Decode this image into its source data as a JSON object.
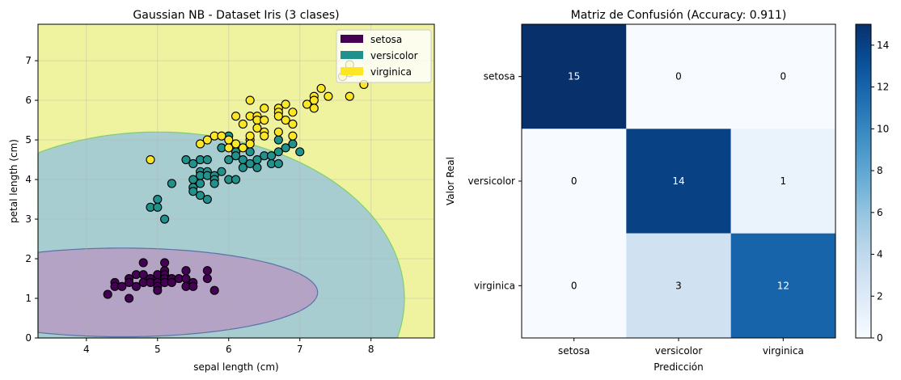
{
  "chart_data": [
    {
      "type": "scatter",
      "title": "Gaussian NB - Dataset Iris (3 clases)",
      "xlabel": "sepal length (cm)",
      "ylabel": "petal length (cm)",
      "xlim": [
        3.32,
        8.89
      ],
      "ylim": [
        0,
        7.92
      ],
      "xticks": [
        4,
        5,
        6,
        7,
        8
      ],
      "yticks": [
        0,
        1,
        2,
        3,
        4,
        5,
        6,
        7
      ],
      "grid": true,
      "legend_position": "top-right",
      "background_color": "#eff29e",
      "regions": [
        {
          "class": "versicolor",
          "shape": "ellipse",
          "center": [
            5.0,
            1.0
          ],
          "radii": [
            3.47,
            4.2
          ],
          "color": "#a7cdd0",
          "edge": "#7ed06a"
        },
        {
          "class": "setosa",
          "shape": "ellipse",
          "center": [
            4.5,
            1.15
          ],
          "radii": [
            2.75,
            1.12
          ],
          "color": "#b4a3c5",
          "edge": "#5a72a8"
        }
      ],
      "series": [
        {
          "name": "setosa",
          "color": "#440154",
          "points": [
            [
              4.8,
              1.9
            ],
            [
              5.1,
              1.9
            ],
            [
              4.3,
              1.1
            ],
            [
              4.4,
              1.4
            ],
            [
              4.4,
              1.3
            ],
            [
              4.5,
              1.3
            ],
            [
              4.6,
              1.5
            ],
            [
              4.6,
              1.4
            ],
            [
              4.6,
              1.0
            ],
            [
              4.7,
              1.6
            ],
            [
              4.7,
              1.3
            ],
            [
              4.8,
              1.6
            ],
            [
              4.8,
              1.4
            ],
            [
              4.9,
              1.5
            ],
            [
              4.9,
              1.4
            ],
            [
              5.0,
              1.6
            ],
            [
              5.0,
              1.4
            ],
            [
              5.0,
              1.3
            ],
            [
              5.0,
              1.2
            ],
            [
              5.1,
              1.7
            ],
            [
              5.1,
              1.6
            ],
            [
              5.1,
              1.5
            ],
            [
              5.1,
              1.4
            ],
            [
              5.2,
              1.5
            ],
            [
              5.2,
              1.4
            ],
            [
              5.3,
              1.5
            ],
            [
              5.4,
              1.7
            ],
            [
              5.4,
              1.5
            ],
            [
              5.4,
              1.3
            ],
            [
              5.5,
              1.4
            ],
            [
              5.5,
              1.3
            ],
            [
              5.7,
              1.7
            ],
            [
              5.7,
              1.5
            ],
            [
              5.8,
              1.2
            ]
          ]
        },
        {
          "name": "versicolor",
          "color": "#21918c",
          "points": [
            [
              4.9,
              3.3
            ],
            [
              5.0,
              3.5
            ],
            [
              5.0,
              3.3
            ],
            [
              5.1,
              3.0
            ],
            [
              5.2,
              3.9
            ],
            [
              5.4,
              4.5
            ],
            [
              5.5,
              4.4
            ],
            [
              5.5,
              4.0
            ],
            [
              5.5,
              3.8
            ],
            [
              5.5,
              3.7
            ],
            [
              5.6,
              4.5
            ],
            [
              5.6,
              4.2
            ],
            [
              5.6,
              4.1
            ],
            [
              5.6,
              3.9
            ],
            [
              5.6,
              3.6
            ],
            [
              5.7,
              4.5
            ],
            [
              5.7,
              4.2
            ],
            [
              5.7,
              4.1
            ],
            [
              5.7,
              3.5
            ],
            [
              5.8,
              4.1
            ],
            [
              5.8,
              4.0
            ],
            [
              5.8,
              3.9
            ],
            [
              5.9,
              4.8
            ],
            [
              5.9,
              4.2
            ],
            [
              6.0,
              5.1
            ],
            [
              6.0,
              4.5
            ],
            [
              6.0,
              4.0
            ],
            [
              6.1,
              4.7
            ],
            [
              6.1,
              4.6
            ],
            [
              6.1,
              4.0
            ],
            [
              6.2,
              4.5
            ],
            [
              6.2,
              4.3
            ],
            [
              6.3,
              4.7
            ],
            [
              6.3,
              4.4
            ],
            [
              6.4,
              4.5
            ],
            [
              6.4,
              4.3
            ],
            [
              6.5,
              4.6
            ],
            [
              6.6,
              4.6
            ],
            [
              6.6,
              4.4
            ],
            [
              6.7,
              5.0
            ],
            [
              6.7,
              4.7
            ],
            [
              6.7,
              4.4
            ],
            [
              6.8,
              4.8
            ],
            [
              6.9,
              4.9
            ],
            [
              7.0,
              4.7
            ]
          ]
        },
        {
          "name": "virginica",
          "color": "#fde725",
          "points": [
            [
              4.9,
              4.5
            ],
            [
              5.6,
              4.9
            ],
            [
              5.7,
              5.0
            ],
            [
              5.8,
              5.1
            ],
            [
              5.9,
              5.1
            ],
            [
              6.0,
              4.8
            ],
            [
              6.0,
              5.0
            ],
            [
              6.1,
              4.9
            ],
            [
              6.2,
              4.8
            ],
            [
              6.3,
              5.0
            ],
            [
              6.3,
              6.0
            ],
            [
              6.1,
              5.6
            ],
            [
              6.2,
              5.4
            ],
            [
              6.3,
              5.6
            ],
            [
              6.4,
              5.6
            ],
            [
              6.4,
              5.5
            ],
            [
              6.4,
              5.3
            ],
            [
              6.5,
              5.8
            ],
            [
              6.5,
              5.5
            ],
            [
              6.5,
              5.2
            ],
            [
              6.5,
              5.1
            ],
            [
              6.7,
              5.8
            ],
            [
              6.7,
              5.7
            ],
            [
              6.7,
              5.6
            ],
            [
              6.7,
              5.2
            ],
            [
              6.8,
              5.9
            ],
            [
              6.8,
              5.5
            ],
            [
              6.9,
              5.7
            ],
            [
              6.9,
              5.4
            ],
            [
              6.9,
              5.1
            ],
            [
              6.3,
              5.1
            ],
            [
              6.3,
              4.9
            ],
            [
              7.1,
              5.9
            ],
            [
              7.2,
              6.1
            ],
            [
              7.2,
              6.0
            ],
            [
              7.2,
              5.8
            ],
            [
              7.3,
              6.3
            ],
            [
              7.4,
              6.1
            ],
            [
              7.7,
              6.1
            ],
            [
              7.9,
              6.4
            ],
            [
              7.7,
              6.9
            ],
            [
              7.6,
              6.6
            ],
            [
              7.7,
              6.7
            ]
          ]
        }
      ]
    },
    {
      "type": "heatmap",
      "title": "Matriz de Confusión (Accuracy: 0.911)",
      "xlabel": "Predicción",
      "ylabel": "Valor Real",
      "x_categories": [
        "setosa",
        "versicolor",
        "virginica"
      ],
      "y_categories": [
        "setosa",
        "versicolor",
        "virginica"
      ],
      "values": [
        [
          15,
          0,
          0
        ],
        [
          0,
          14,
          1
        ],
        [
          0,
          3,
          12
        ]
      ],
      "colormap": "Blues",
      "colorbar": {
        "min": 0,
        "max": 15,
        "ticks": [
          0,
          2,
          4,
          6,
          8,
          10,
          12,
          14
        ]
      }
    }
  ]
}
